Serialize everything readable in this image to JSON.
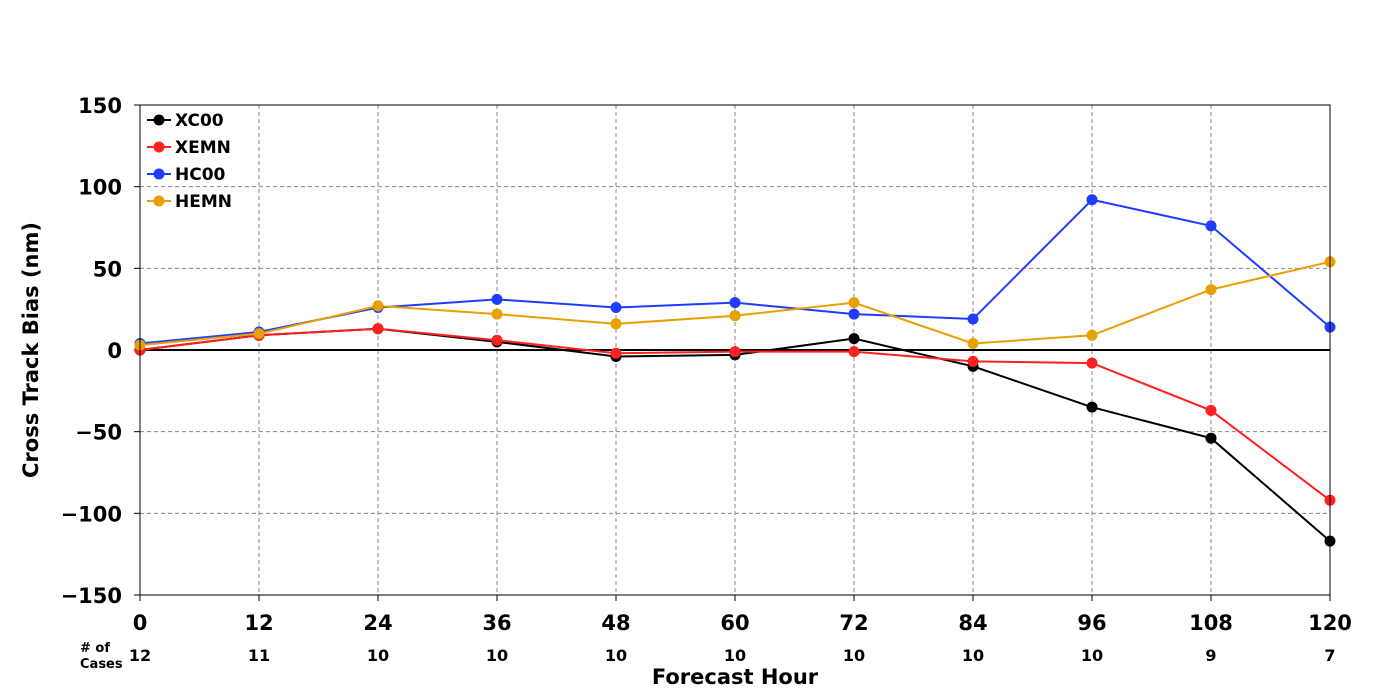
{
  "chart_data": {
    "type": "line",
    "title": "",
    "xlabel": "Forecast Hour",
    "ylabel": "Cross Track Bias (nm)",
    "x": [
      0,
      12,
      24,
      36,
      48,
      60,
      72,
      84,
      96,
      108,
      120
    ],
    "x_tick_labels": [
      "0",
      "12",
      "24",
      "36",
      "48",
      "60",
      "72",
      "84",
      "96",
      "108",
      "120"
    ],
    "y_ticks": [
      150,
      100,
      50,
      0,
      -50,
      -100,
      -150
    ],
    "y_tick_labels": [
      "150",
      "100",
      "50",
      "0",
      "−50",
      "−100",
      "−150"
    ],
    "xlim": [
      0,
      120
    ],
    "ylim": [
      -150,
      150
    ],
    "grid": true,
    "zero_line": true,
    "legend_position": "top-left",
    "cases_header": [
      "# of",
      "Cases"
    ],
    "cases": [
      "12",
      "11",
      "10",
      "10",
      "10",
      "10",
      "10",
      "10",
      "10",
      "9",
      "7"
    ],
    "series": [
      {
        "name": "XC00",
        "color": "#000000",
        "values": [
          0,
          9,
          13,
          5,
          -4,
          -3,
          7,
          -10,
          -35,
          -54,
          -117
        ]
      },
      {
        "name": "XEMN",
        "color": "#ff2020",
        "values": [
          0,
          9,
          13,
          6,
          -2,
          -1,
          -1,
          -7,
          -8,
          -37,
          -92
        ]
      },
      {
        "name": "HC00",
        "color": "#1f3cff",
        "values": [
          4,
          11,
          26,
          31,
          26,
          29,
          22,
          19,
          92,
          76,
          14
        ]
      },
      {
        "name": "HEMN",
        "color": "#e8a000",
        "values": [
          3,
          10,
          27,
          22,
          16,
          21,
          29,
          4,
          9,
          37,
          54
        ]
      }
    ]
  }
}
